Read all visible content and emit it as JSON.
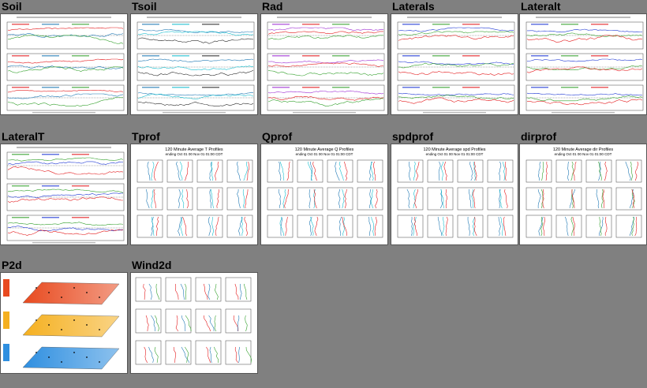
{
  "gallery": {
    "tiles": [
      {
        "title": "Soil",
        "kind": "ts3",
        "colors": [
          "#e31a1c",
          "#1f78b4",
          "#33a02c"
        ]
      },
      {
        "title": "Tsoil",
        "kind": "ts3",
        "colors": [
          "#1f78b4",
          "#17becf",
          "#2c2c2c"
        ]
      },
      {
        "title": "Rad",
        "kind": "ts3",
        "colors": [
          "#9e2fd3",
          "#e31a1c",
          "#33a02c"
        ]
      },
      {
        "title": "Laterals",
        "kind": "ts3",
        "colors": [
          "#1f38d4",
          "#33a02c",
          "#e31a1c"
        ]
      },
      {
        "title": "Lateralt",
        "kind": "ts3",
        "colors": [
          "#1f38d4",
          "#33a02c",
          "#e31a1c"
        ]
      },
      {
        "title": "LateralT",
        "kind": "ts3",
        "colors": [
          "#33a02c",
          "#1f38d4",
          "#e31a1c"
        ]
      },
      {
        "title": "Tprof",
        "kind": "prof",
        "colors": [
          "#1f78b4",
          "#17becf",
          "#e31a1c"
        ]
      },
      {
        "title": "Qprof",
        "kind": "prof",
        "colors": [
          "#1f78b4",
          "#17becf",
          "#e31a1c"
        ]
      },
      {
        "title": "spdprof",
        "kind": "prof",
        "colors": [
          "#1f78b4",
          "#17becf",
          "#e31a1c"
        ]
      },
      {
        "title": "dirprof",
        "kind": "prof",
        "colors": [
          "#1f78b4",
          "#33a02c",
          "#e31a1c"
        ]
      },
      {
        "title": "P2d",
        "kind": "p2d",
        "colors": [
          "#e84a1f",
          "#f5b020",
          "#2f8fe0"
        ]
      },
      {
        "title": "Wind2d",
        "kind": "wind",
        "colors": [
          "#e31a1c",
          "#1f78b4",
          "#33a02c"
        ]
      }
    ]
  },
  "prof_titles": {
    "Tprof": "120 Minute Average T Profiles",
    "Qprof": "120 Minute Average Q Profiles",
    "spdprof": "120 Minute Average spd Profiles",
    "dirprof": "120 Minute Average dir Profiles"
  },
  "prof_subtitle": "ending Oct 01 00 Nov 01 01:00 CDT"
}
